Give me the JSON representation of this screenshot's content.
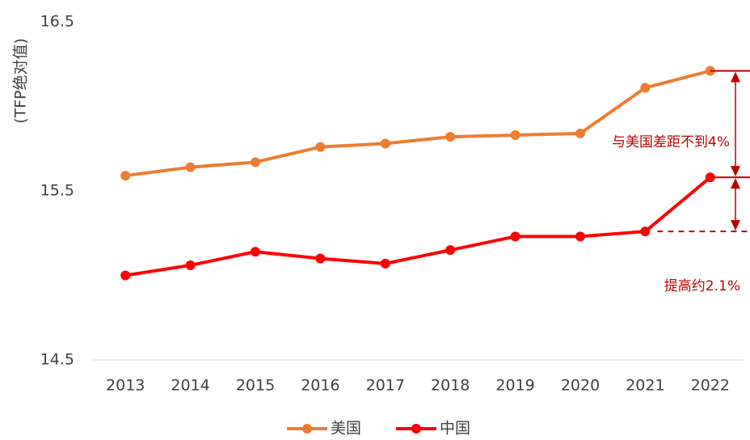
{
  "chart_data": {
    "type": "line",
    "y_label": "(TFP绝对值)",
    "categories": [
      "2013",
      "2014",
      "2015",
      "2016",
      "2017",
      "2018",
      "2019",
      "2020",
      "2021",
      "2022"
    ],
    "series": [
      {
        "name": "美国",
        "color": "#ED7D31",
        "values": [
          15.59,
          15.64,
          15.67,
          15.76,
          15.78,
          15.82,
          15.83,
          15.84,
          16.11,
          16.21
        ]
      },
      {
        "name": "中国",
        "color": "#FF0000",
        "values": [
          15.0,
          15.06,
          15.14,
          15.1,
          15.07,
          15.15,
          15.23,
          15.23,
          15.26,
          15.58
        ]
      }
    ],
    "ylim": [
      14.5,
      16.5
    ],
    "yticks": [
      14.5,
      15.5,
      16.5
    ],
    "grid": false,
    "legend": "bottom",
    "annotations": [
      "与美国差距不到4%",
      "提高约2.1%"
    ],
    "annotation_color": "#C00000"
  }
}
